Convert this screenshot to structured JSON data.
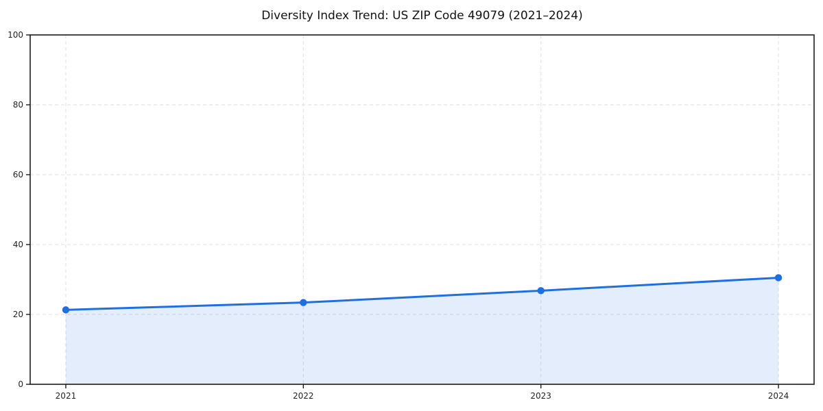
{
  "chart_data": {
    "type": "line",
    "title": "Diversity Index Trend: US ZIP Code 49079 (2021–2024)",
    "x": [
      2021,
      2022,
      2023,
      2024
    ],
    "values": [
      21.3,
      23.4,
      26.8,
      30.5
    ],
    "xticks": [
      "2021",
      "2022",
      "2023",
      "2024"
    ],
    "yticks": [
      0,
      20,
      40,
      60,
      80,
      100
    ],
    "ylim": [
      0,
      100
    ],
    "x_margin_frac": 0.05,
    "xlabel": "",
    "ylabel": "",
    "grid": true,
    "grid_style": "dashed",
    "area_fill": true,
    "legend_position": "none",
    "marker": "circle",
    "colors": {
      "line": "#1f6fe0",
      "marker": "#1f6fe0",
      "fill": "rgba(31,111,224,0.12)",
      "grid": "#e4e4e4",
      "frame": "#1a1a1a",
      "title_text": "#111111",
      "tick_text": "#222222",
      "background": "#ffffff"
    }
  }
}
